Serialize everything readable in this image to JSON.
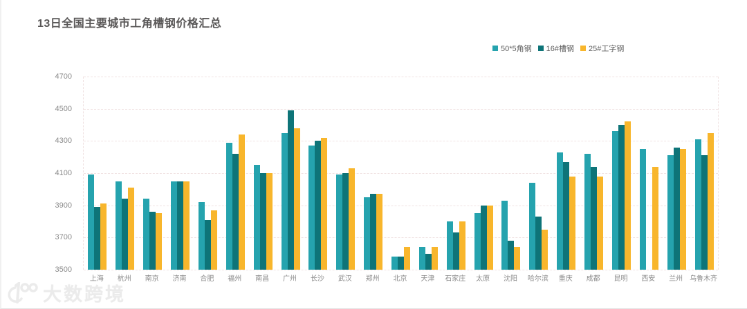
{
  "page": {
    "title": "13日全国主要城市工角槽钢价格汇总",
    "watermark_text": "大数跨境"
  },
  "colors": {
    "title": "#595757",
    "grid": "#f0e2e2",
    "axis_label": "#8a8a8a",
    "watermark": "#ebebeb"
  },
  "chart_data": {
    "type": "bar",
    "title": "13日全国主要城市工角槽钢价格汇总",
    "categories": [
      "上海",
      "杭州",
      "南京",
      "济南",
      "合肥",
      "福州",
      "南昌",
      "广州",
      "长沙",
      "武汉",
      "郑州",
      "北京",
      "天津",
      "石家庄",
      "太原",
      "沈阳",
      "哈尔滨",
      "重庆",
      "成都",
      "昆明",
      "西安",
      "兰州",
      "乌鲁木齐"
    ],
    "series": [
      {
        "name": "50*5角钢",
        "color": "#25a3ae",
        "values": [
          4090,
          4050,
          3940,
          4050,
          3920,
          4290,
          4150,
          4350,
          4270,
          4090,
          3950,
          3580,
          3640,
          3800,
          3850,
          3930,
          4040,
          4230,
          4220,
          4360,
          4250,
          4210,
          4310
        ]
      },
      {
        "name": "16#槽钢",
        "color": "#0e7478",
        "values": [
          3890,
          3940,
          3860,
          4050,
          3810,
          4220,
          4100,
          4490,
          4300,
          4100,
          3970,
          3580,
          3600,
          3730,
          3900,
          3680,
          3830,
          4170,
          4140,
          4400,
          null,
          4260,
          4210
        ]
      },
      {
        "name": "25#工字钢",
        "color": "#f8b62c",
        "values": [
          3910,
          4010,
          3850,
          4050,
          3870,
          4340,
          4100,
          4380,
          4320,
          4130,
          3970,
          3640,
          3640,
          3800,
          3900,
          3640,
          3750,
          4080,
          4080,
          4420,
          4140,
          4250,
          4350
        ]
      }
    ],
    "ylim": [
      3500,
      4700
    ],
    "yticks": [
      3500,
      3700,
      3900,
      4100,
      4300,
      4500,
      4700
    ],
    "grid": "horizontal-dashed",
    "legend_position": "top-right",
    "xlabel": "",
    "ylabel": ""
  }
}
